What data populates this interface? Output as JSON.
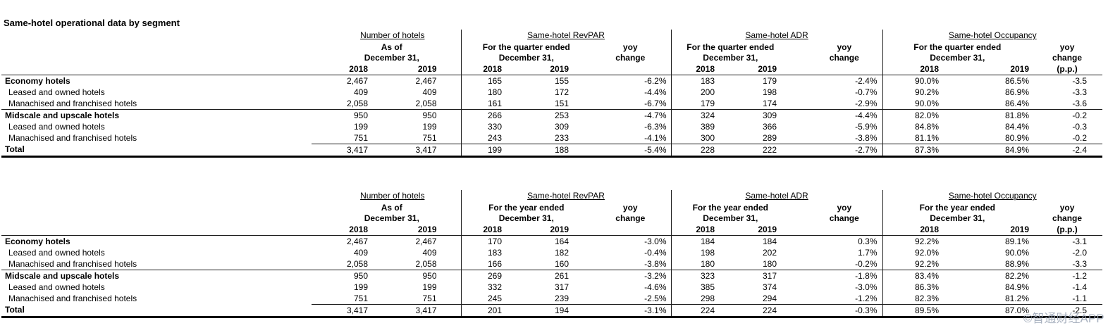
{
  "title": "Same-hotel operational data by segment",
  "watermark": "©智通财经APP",
  "colors": {
    "background": "#ffffff",
    "text": "#000000",
    "rule_line": "#1c1c1c",
    "watermark": "#9ea8b8"
  },
  "tables": [
    {
      "name": "quarterly",
      "groups": [
        {
          "title": "Number of hotels",
          "period": "As of\nDecember 31,",
          "years": [
            "2018",
            "2019"
          ]
        },
        {
          "title": "Same-hotel RevPAR",
          "period": "For the quarter ended\nDecember 31,",
          "years": [
            "2018",
            "2019"
          ],
          "yoy": "yoy\nchange"
        },
        {
          "title": "Same-hotel ADR",
          "period": "For the quarter ended\nDecember 31,",
          "years": [
            "2018",
            "2019"
          ],
          "yoy": "yoy\nchange"
        },
        {
          "title": "Same-hotel Occupancy",
          "period": "For the quarter ended\nDecember 31,",
          "years": [
            "2018",
            "2019"
          ],
          "yoy": "yoy\nchange",
          "yoy_unit": "(p.p.)"
        }
      ],
      "rows": [
        {
          "label": "Economy hotels",
          "style": "group",
          "values": [
            "2,467",
            "2,467",
            "165",
            "155",
            "-6.2%",
            "183",
            "179",
            "-2.4%",
            "90.0%",
            "86.5%",
            "-3.5"
          ]
        },
        {
          "label": "Leased and owned hotels",
          "style": "sub",
          "values": [
            "409",
            "409",
            "180",
            "172",
            "-4.4%",
            "200",
            "198",
            "-0.7%",
            "90.2%",
            "86.9%",
            "-3.3"
          ]
        },
        {
          "label": "Manachised and franchised hotels",
          "style": "sub",
          "values": [
            "2,058",
            "2,058",
            "161",
            "151",
            "-6.7%",
            "179",
            "174",
            "-2.9%",
            "90.0%",
            "86.4%",
            "-3.6"
          ]
        },
        {
          "label": "Midscale and upscale hotels",
          "style": "group",
          "separator_above": true,
          "values": [
            "950",
            "950",
            "266",
            "253",
            "-4.7%",
            "324",
            "309",
            "-4.4%",
            "82.0%",
            "81.8%",
            "-0.2"
          ]
        },
        {
          "label": "Leased and owned hotels",
          "style": "sub",
          "values": [
            "199",
            "199",
            "330",
            "309",
            "-6.3%",
            "389",
            "366",
            "-5.9%",
            "84.8%",
            "84.4%",
            "-0.3"
          ]
        },
        {
          "label": "Manachised and franchised hotels",
          "style": "sub",
          "values": [
            "751",
            "751",
            "243",
            "233",
            "-4.1%",
            "300",
            "289",
            "-3.8%",
            "81.1%",
            "80.9%",
            "-0.2"
          ]
        },
        {
          "label": "Total",
          "style": "total",
          "values": [
            "3,417",
            "3,417",
            "199",
            "188",
            "-5.4%",
            "228",
            "222",
            "-2.7%",
            "87.3%",
            "84.9%",
            "-2.4"
          ]
        }
      ]
    },
    {
      "name": "annual",
      "groups": [
        {
          "title": "Number of hotels",
          "period": "As of\nDecember 31,",
          "years": [
            "2018",
            "2019"
          ]
        },
        {
          "title": "Same-hotel RevPAR",
          "period": "For the year ended\nDecember 31,",
          "years": [
            "2018",
            "2019"
          ],
          "yoy": "yoy\nchange"
        },
        {
          "title": "Same-hotel ADR",
          "period": "For the year ended\nDecember 31,",
          "years": [
            "2018",
            "2019"
          ],
          "yoy": "yoy\nchange"
        },
        {
          "title": "Same-hotel Occupancy",
          "period": "For the year ended\nDecember 31,",
          "years": [
            "2018",
            "2019"
          ],
          "yoy": "yoy\nchange",
          "yoy_unit": "(p.p.)"
        }
      ],
      "rows": [
        {
          "label": "Economy hotels",
          "style": "group",
          "values": [
            "2,467",
            "2,467",
            "170",
            "164",
            "-3.0%",
            "184",
            "184",
            "0.3%",
            "92.2%",
            "89.1%",
            "-3.1"
          ]
        },
        {
          "label": "Leased and owned hotels",
          "style": "sub",
          "values": [
            "409",
            "409",
            "183",
            "182",
            "-0.4%",
            "198",
            "202",
            "1.7%",
            "92.0%",
            "90.0%",
            "-2.0"
          ]
        },
        {
          "label": "Manachised and franchised hotels",
          "style": "sub",
          "values": [
            "2,058",
            "2,058",
            "166",
            "160",
            "-3.8%",
            "180",
            "180",
            "-0.2%",
            "92.2%",
            "88.9%",
            "-3.3"
          ]
        },
        {
          "label": "Midscale and upscale hotels",
          "style": "group",
          "separator_above": true,
          "values": [
            "950",
            "950",
            "269",
            "261",
            "-3.2%",
            "323",
            "317",
            "-1.8%",
            "83.4%",
            "82.2%",
            "-1.2"
          ]
        },
        {
          "label": "Leased and owned hotels",
          "style": "sub",
          "values": [
            "199",
            "199",
            "332",
            "317",
            "-4.6%",
            "385",
            "374",
            "-3.0%",
            "86.3%",
            "84.9%",
            "-1.4"
          ]
        },
        {
          "label": "Manachised and franchised hotels",
          "style": "sub",
          "values": [
            "751",
            "751",
            "245",
            "239",
            "-2.5%",
            "298",
            "294",
            "-1.2%",
            "82.3%",
            "81.2%",
            "-1.1"
          ]
        },
        {
          "label": "Total",
          "style": "total",
          "values": [
            "3,417",
            "3,417",
            "201",
            "194",
            "-3.1%",
            "224",
            "224",
            "-0.3%",
            "89.5%",
            "87.0%",
            "-2.5"
          ]
        }
      ]
    }
  ]
}
